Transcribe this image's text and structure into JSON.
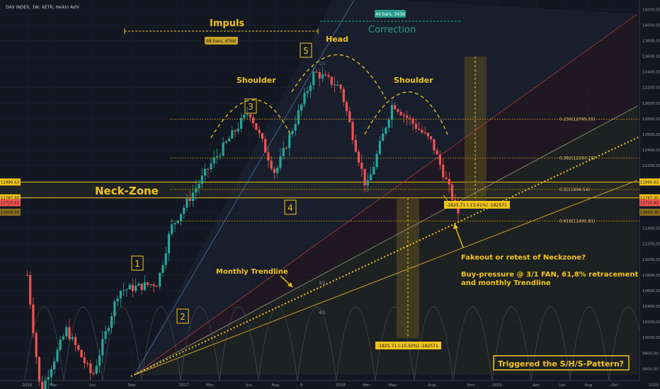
{
  "header": {
    "symbol": "DAX INDEX, 1W, XETR, Heikin Ashi"
  },
  "colors": {
    "background": "#131722",
    "grid": "#1f2333",
    "bull": "#26a69a",
    "bear": "#ef5350",
    "annotation": "#f0c419",
    "fib": "#d4a017",
    "correction": "#2a9d8f",
    "tick_text": "#9598a1"
  },
  "chart_data": {
    "type": "candlestick",
    "candle_style": "Heikin Ashi",
    "timeframe": "1W",
    "x_axis": {
      "tick_labels": [
        "2016",
        "Mar",
        "Jun",
        "Sep",
        "2017",
        "Mar",
        "Jun",
        "Aug",
        "9",
        "2018",
        "Mar",
        "May",
        "Aug",
        "Nov",
        "2019",
        "Apr",
        "Jun",
        "Aug",
        "Oct",
        "2020"
      ],
      "range": [
        "2015-12",
        "2020-01"
      ]
    },
    "y_axis": {
      "ticks": [
        9600,
        9800,
        10000,
        10200,
        10400,
        10600,
        10800,
        11000,
        11200,
        11400,
        11600,
        11800,
        12000,
        12200,
        12400,
        12600,
        12800,
        13000,
        13200,
        13400,
        13600,
        13800,
        14000,
        14200
      ],
      "range": [
        9450,
        14320
      ],
      "tick_labels": [
        "9600.00",
        "9800.00",
        "10000.00",
        "10200.00",
        "10400.00",
        "10600.00",
        "10800.00",
        "11000.00",
        "11200.00",
        "11400.00",
        "11600.00",
        "11800.00",
        "12000.00",
        "12200.00",
        "12400.00",
        "12600.00",
        "12800.00",
        "13000.00",
        "13200.00",
        "13400.00",
        "13600.00",
        "13800.00",
        "14000.00",
        "14200.00"
      ]
    },
    "price_badges": [
      {
        "value": 11990.63,
        "label": "11990.63",
        "color": "#f0c419"
      },
      {
        "value": 11787.9,
        "label": "11787.90",
        "color": "#f0c419"
      },
      {
        "value": 11725.81,
        "label": "11725.81",
        "color": "#ef5350"
      },
      {
        "value": 11604.38,
        "label": "11604.38",
        "color": "#8a6d1b"
      }
    ],
    "fib_levels": [
      {
        "ratio": "0.236",
        "value": 12795.55,
        "label": "0.236(12795.55)"
      },
      {
        "ratio": "0.382",
        "value": 12297.2,
        "label": "0.382(12297.20)"
      },
      {
        "ratio": "0.5",
        "value": 11894.54,
        "label": "0.5(11894.54)"
      },
      {
        "ratio": "0.618",
        "value": 11491.81,
        "label": "0.618(11491.81)"
      }
    ],
    "neck_zone": {
      "from": 11787.9,
      "to": 11990.63
    },
    "candles_anchor": [
      [
        "2016-01",
        10800
      ],
      [
        "2016-02",
        9300
      ],
      [
        "2016-04",
        10100
      ],
      [
        "2016-06",
        9500
      ],
      [
        "2016-08",
        10600
      ],
      [
        "2016-11",
        10700
      ],
      [
        "2016-12",
        11400
      ],
      [
        "2017-03",
        12200
      ],
      [
        "2017-06",
        12900
      ],
      [
        "2017-08",
        12100
      ],
      [
        "2017-11",
        13400
      ],
      [
        "2018-01",
        13200
      ],
      [
        "2018-03",
        11900
      ],
      [
        "2018-05",
        13000
      ],
      [
        "2018-08",
        12500
      ],
      [
        "2018-10",
        11600
      ]
    ]
  },
  "annotations": {
    "impuls": "Impuls",
    "impuls_bars": "68 bars, 476d",
    "correction": "Correction",
    "correction_bars": "49 bars, 343d",
    "head": "Head",
    "shoulder_left": "Shoulder",
    "shoulder_right": "Shoulder",
    "neck_zone": "Neck-Zone",
    "wave_1": "1",
    "wave_2": "2",
    "wave_3": "3",
    "wave_4": "4",
    "wave_5": "5",
    "monthly_trendline": "Monthly Trendline",
    "measure_top": "-1825.71 (-13.41%) -182571",
    "measure_bottom": "-1825.71 (-15.50%) -182571",
    "fakeout": "Fakeout or retest of Neckzone?",
    "buy_pressure": "Buy-pressure @ 3/1 FAN, 61,8% retracement",
    "buy_pressure_2": "and monthly Trendline",
    "triggered": "Triggered the S/H/S-Pattern?",
    "fan_1_1": "1/1",
    "fan_3_1": "3/1",
    "fan_4_1": "4/1"
  }
}
